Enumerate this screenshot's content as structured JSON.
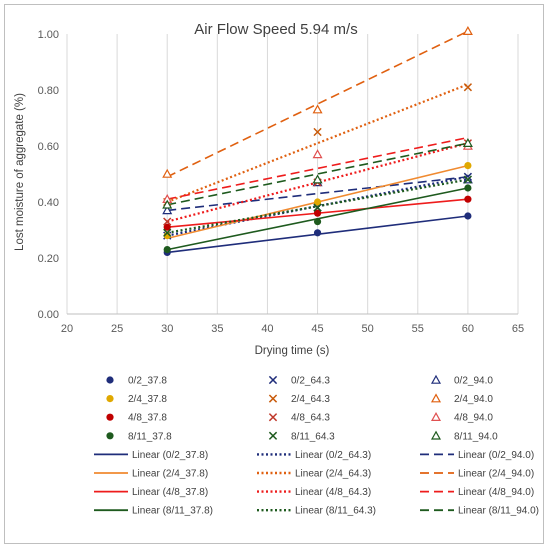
{
  "chart_data": {
    "type": "scatter",
    "title": "Air Flow Speed 5.94 m/s",
    "xlabel": "Drying time (s)",
    "ylabel": "Lost moisture of aggregate (%)",
    "xlim": [
      20,
      65
    ],
    "ylim": [
      0.0,
      1.0
    ],
    "xticks": [
      "20",
      "25",
      "30",
      "35",
      "40",
      "45",
      "50",
      "55",
      "60",
      "65"
    ],
    "yticks": [
      "0.00",
      "0.20",
      "0.40",
      "0.60",
      "0.80",
      "1.00"
    ],
    "grid": "vertical",
    "legend_position": "bottom",
    "x": [
      30,
      45,
      60
    ],
    "series": [
      {
        "name": "0/2_37.8",
        "marker": "circle",
        "color": "#1f2d7a",
        "values": [
          0.22,
          0.29,
          0.35
        ]
      },
      {
        "name": "0/2_64.3",
        "marker": "x",
        "color": "#1f2d7a",
        "values": [
          0.28,
          0.38,
          0.49
        ]
      },
      {
        "name": "0/2_94.0",
        "marker": "triangle",
        "color": "#1f2d7a",
        "values": [
          0.37,
          0.47,
          0.48
        ]
      },
      {
        "name": "2/4_37.8",
        "marker": "circle",
        "color": "#e0a800",
        "values": [
          0.28,
          0.4,
          0.53
        ]
      },
      {
        "name": "2/4_64.3",
        "marker": "x",
        "color": "#c85a0a",
        "values": [
          0.4,
          0.65,
          0.81
        ]
      },
      {
        "name": "2/4_94.0",
        "marker": "triangle",
        "color": "#e06010",
        "values": [
          0.5,
          0.73,
          1.01
        ]
      },
      {
        "name": "4/8_37.8",
        "marker": "circle",
        "color": "#c00000",
        "values": [
          0.31,
          0.36,
          0.41
        ]
      },
      {
        "name": "4/8_64.3",
        "marker": "x",
        "color": "#c0392b",
        "values": [
          0.33,
          0.47,
          0.61
        ]
      },
      {
        "name": "4/8_94.0",
        "marker": "triangle",
        "color": "#e05050",
        "values": [
          0.41,
          0.57,
          0.6
        ]
      },
      {
        "name": "8/11_37.8",
        "marker": "circle",
        "color": "#1e5a1e",
        "values": [
          0.23,
          0.33,
          0.45
        ]
      },
      {
        "name": "8/11_64.3",
        "marker": "x",
        "color": "#1e5a1e",
        "values": [
          0.29,
          0.38,
          0.48
        ]
      },
      {
        "name": "8/11_94.0",
        "marker": "triangle",
        "color": "#1e5a1e",
        "values": [
          0.39,
          0.48,
          0.61
        ]
      }
    ],
    "trendlines": [
      {
        "name": "Linear (0/2_37.8)",
        "style": "solid",
        "color": "#1f2d7a",
        "values": [
          0.22,
          0.35
        ]
      },
      {
        "name": "Linear (0/2_64.3)",
        "style": "dotted",
        "color": "#1f2d7a",
        "values": [
          0.28,
          0.49
        ]
      },
      {
        "name": "Linear (0/2_94.0)",
        "style": "dashed",
        "color": "#1f2d7a",
        "values": [
          0.37,
          0.49
        ]
      },
      {
        "name": "Linear (2/4_37.8)",
        "style": "solid",
        "color": "#f08a30",
        "values": [
          0.27,
          0.53
        ]
      },
      {
        "name": "Linear (2/4_64.3)",
        "style": "dotted",
        "color": "#e06010",
        "values": [
          0.4,
          0.82
        ]
      },
      {
        "name": "Linear (2/4_94.0)",
        "style": "dashed",
        "color": "#e06010",
        "values": [
          0.49,
          1.01
        ]
      },
      {
        "name": "Linear (4/8_37.8)",
        "style": "solid",
        "color": "#ee1c1c",
        "values": [
          0.31,
          0.41
        ]
      },
      {
        "name": "Linear (4/8_64.3)",
        "style": "dotted",
        "color": "#ee1c1c",
        "values": [
          0.33,
          0.61
        ]
      },
      {
        "name": "Linear (4/8_94.0)",
        "style": "dashed",
        "color": "#ee1c1c",
        "values": [
          0.41,
          0.63
        ]
      },
      {
        "name": "Linear (8/11_37.8)",
        "style": "solid",
        "color": "#1e5a1e",
        "values": [
          0.23,
          0.45
        ]
      },
      {
        "name": "Linear (8/11_64.3)",
        "style": "dotted",
        "color": "#1e5a1e",
        "values": [
          0.29,
          0.48
        ]
      },
      {
        "name": "Linear (8/11_94.0)",
        "style": "dashed",
        "color": "#1e5a1e",
        "values": [
          0.39,
          0.61
        ]
      }
    ]
  }
}
